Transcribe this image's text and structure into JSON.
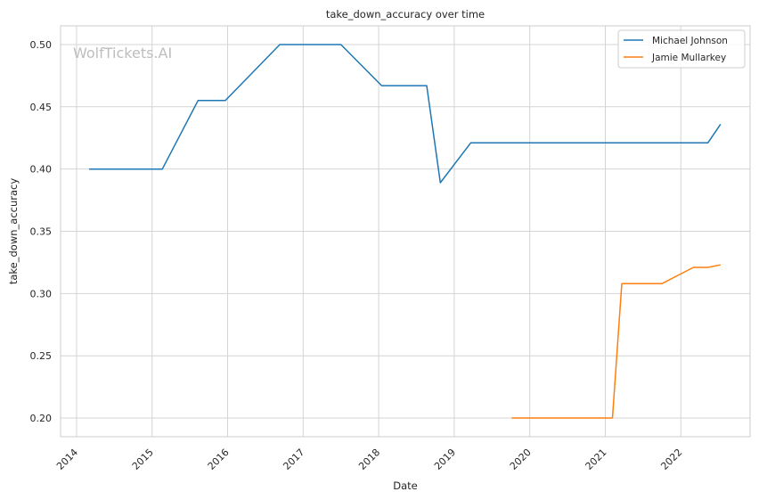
{
  "chart_data": {
    "type": "line",
    "title": "take_down_accuracy over time",
    "xlabel": "Date",
    "ylabel": "take_down_accuracy",
    "watermark": "WolfTickets.AI",
    "xlim": [
      "2013-10-15",
      "2022-12-01"
    ],
    "ylim": [
      0.185,
      0.515
    ],
    "x_ticks": [
      "2014",
      "2015",
      "2016",
      "2017",
      "2018",
      "2019",
      "2020",
      "2021",
      "2022"
    ],
    "y_ticks": [
      "0.20",
      "0.25",
      "0.30",
      "0.35",
      "0.40",
      "0.45",
      "0.50"
    ],
    "grid": true,
    "legend_position": "top-right",
    "series": [
      {
        "name": "Michael Johnson",
        "color": "#1f77b4",
        "points": [
          {
            "x": "2014-03-01",
            "y": 0.4
          },
          {
            "x": "2015-02-20",
            "y": 0.4
          },
          {
            "x": "2015-08-10",
            "y": 0.455
          },
          {
            "x": "2015-12-20",
            "y": 0.455
          },
          {
            "x": "2016-09-10",
            "y": 0.5
          },
          {
            "x": "2017-07-01",
            "y": 0.5
          },
          {
            "x": "2018-01-15",
            "y": 0.467
          },
          {
            "x": "2018-08-20",
            "y": 0.467
          },
          {
            "x": "2018-10-25",
            "y": 0.389
          },
          {
            "x": "2019-03-20",
            "y": 0.421
          },
          {
            "x": "2022-05-10",
            "y": 0.421
          },
          {
            "x": "2022-07-10",
            "y": 0.436
          }
        ]
      },
      {
        "name": "Jamie Mullarkey",
        "color": "#ff7f0e",
        "points": [
          {
            "x": "2019-10-05",
            "y": 0.2
          },
          {
            "x": "2021-02-05",
            "y": 0.2
          },
          {
            "x": "2021-03-20",
            "y": 0.308
          },
          {
            "x": "2021-10-01",
            "y": 0.308
          },
          {
            "x": "2022-03-01",
            "y": 0.321
          },
          {
            "x": "2022-05-10",
            "y": 0.321
          },
          {
            "x": "2022-07-10",
            "y": 0.323
          }
        ]
      }
    ]
  }
}
